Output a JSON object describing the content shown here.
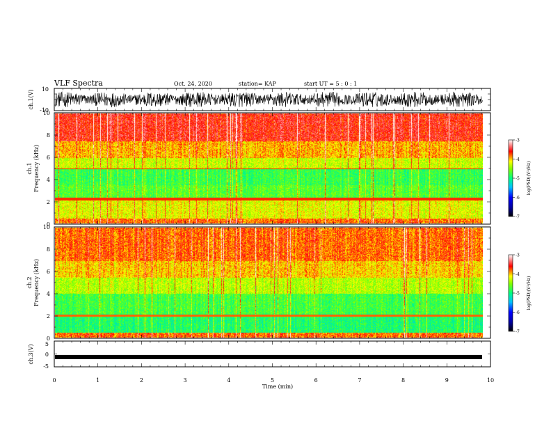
{
  "header": {
    "title": "VLF Spectra",
    "date": "Oct. 24, 2020",
    "station": "station= KAP",
    "start_ut": "start  UT  =   5 : 0  : 1"
  },
  "chart_data": [
    {
      "type": "line",
      "panel": "ch1-waveform",
      "ylabel": "ch.1(V)",
      "ylim": [
        -10,
        10
      ],
      "y_ticks": [
        "10",
        "-10"
      ],
      "x_range_min": [
        0,
        9.82
      ],
      "description_series": "dense voltage trace, amplitude roughly within -7..7 V"
    },
    {
      "type": "heatmap",
      "panel": "ch1-spectrogram",
      "ylabel": "ch.1\nFrequency (kHz)",
      "ylabel_line1": "ch.1",
      "ylabel_line2": "Frequency (kHz)",
      "y_range_khz": [
        0,
        10
      ],
      "y_ticks": [
        "0",
        "2",
        "4",
        "6",
        "8",
        "10"
      ],
      "colorbar": {
        "label": "log(PSD)(V²/Hz)",
        "range": [
          -7,
          -3
        ],
        "ticks": [
          "-3",
          "-4",
          "-5",
          "-6",
          "-7"
        ]
      }
    },
    {
      "type": "heatmap",
      "panel": "ch2-spectrogram",
      "ylabel_line1": "ch.2",
      "ylabel_line2": "Frequency (kHz)",
      "y_range_khz": [
        0,
        10
      ],
      "y_ticks": [
        "0",
        "2",
        "4",
        "6",
        "8",
        "10"
      ],
      "colorbar": {
        "label": "log(PSD)(V²/Hz)",
        "range": [
          -7,
          -3
        ],
        "ticks": [
          "-3",
          "-4",
          "-5",
          "-6",
          "-7"
        ]
      }
    },
    {
      "type": "line",
      "panel": "ch3-waveform",
      "ylabel": "ch.3(V)",
      "ylim": [
        -5,
        5
      ],
      "y_ticks": [
        "5",
        "0",
        "-5"
      ],
      "value_approx": -1.2
    }
  ],
  "x_axis": {
    "label": "Time  (min)",
    "range": [
      0,
      10
    ],
    "ticks": [
      "0",
      "1",
      "2",
      "3",
      "4",
      "5",
      "6",
      "7",
      "8",
      "9",
      "10"
    ]
  }
}
